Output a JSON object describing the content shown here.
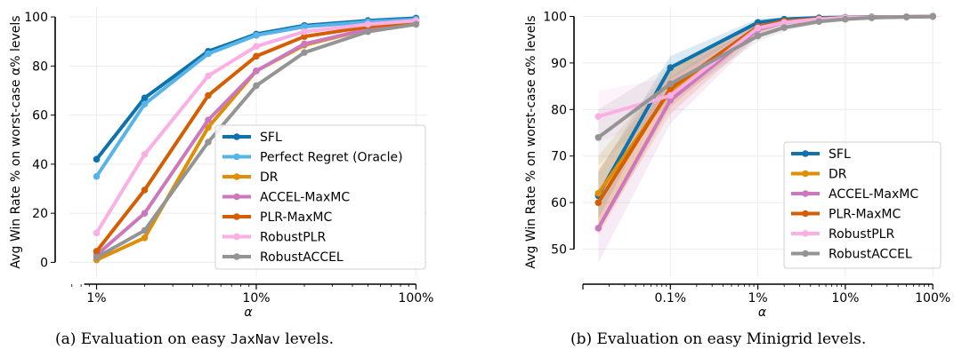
{
  "chart_data": [
    {
      "type": "line",
      "x": [
        1,
        2,
        5,
        10,
        20,
        50,
        100
      ],
      "xscale": "log",
      "xlim_log10": [
        -0.17,
        2.07
      ],
      "ylim": [
        -6,
        104
      ],
      "xticks": [
        {
          "v": 1,
          "label": "1%"
        },
        {
          "v": 10,
          "label": "10%"
        },
        {
          "v": 100,
          "label": "100%"
        }
      ],
      "yticks": [
        0,
        20,
        40,
        60,
        80,
        100
      ],
      "xlabel": "α",
      "ylabel": "Avg Win Rate % on worst-case α% levels",
      "grid": true,
      "legend_position": "lower-right",
      "series": [
        {
          "name": "SFL",
          "color": "#0e72ad",
          "values": [
            42,
            67,
            86,
            93,
            96.5,
            98.5,
            99.5
          ]
        },
        {
          "name": "Perfect Regret (Oracle)",
          "color": "#56b4e9",
          "values": [
            35,
            64.5,
            85,
            92.5,
            96,
            98,
            99
          ]
        },
        {
          "name": "DR",
          "color": "#de8f05",
          "values": [
            1,
            10,
            55,
            78,
            88.5,
            95,
            97.5
          ]
        },
        {
          "name": "ACCEL-MaxMC",
          "color": "#cc78bc",
          "values": [
            3,
            20,
            58,
            78,
            89,
            95,
            98
          ]
        },
        {
          "name": "PLR-MaxMC",
          "color": "#d55e00",
          "values": [
            4.5,
            29.5,
            68,
            84,
            92,
            96,
            98
          ]
        },
        {
          "name": "RobustPLR",
          "color": "#fbafe4",
          "values": [
            12,
            44,
            76,
            88,
            94,
            97,
            98.5
          ]
        },
        {
          "name": "RobustACCEL",
          "color": "#949494",
          "values": [
            2,
            13,
            49,
            72,
            85.5,
            94,
            97
          ]
        }
      ]
    },
    {
      "type": "line",
      "x": [
        0.015,
        0.1,
        1,
        2,
        5,
        10,
        20,
        50,
        100
      ],
      "xscale": "log",
      "xlim_log10": [
        -2.0,
        2.1
      ],
      "ylim": [
        44,
        102
      ],
      "xticks": [
        {
          "v": 0.1,
          "label": "0.1%"
        },
        {
          "v": 1,
          "label": "1%"
        },
        {
          "v": 10,
          "label": "10%"
        },
        {
          "v": 100,
          "label": "100%"
        }
      ],
      "yticks": [
        50,
        60,
        70,
        80,
        90,
        100
      ],
      "xlabel": "α",
      "ylabel": "Avg Win Rate % on worst-case α% levels",
      "grid": true,
      "legend_position": "lower-right",
      "series": [
        {
          "name": "SFL",
          "color": "#0e72ad",
          "values": [
            61.5,
            89,
            98.7,
            99.4,
            99.7,
            99.8,
            99.9,
            99.9,
            100
          ],
          "band": [
            5,
            2.5,
            0.8,
            0.4,
            0.3,
            0.2,
            0.1,
            0.1,
            0.1
          ]
        },
        {
          "name": "DR",
          "color": "#de8f05",
          "values": [
            62,
            84,
            97.5,
            98.8,
            99.5,
            99.7,
            99.8,
            99.9,
            100
          ],
          "band": [
            8,
            5,
            1.5,
            0.8,
            0.5,
            0.3,
            0.2,
            0.1,
            0.1
          ]
        },
        {
          "name": "ACCEL-MaxMC",
          "color": "#cc78bc",
          "values": [
            54.5,
            82,
            97.2,
            98.7,
            99.4,
            99.7,
            99.8,
            99.9,
            100
          ],
          "band": [
            7.5,
            5,
            1.5,
            0.8,
            0.5,
            0.3,
            0.2,
            0.1,
            0.1
          ]
        },
        {
          "name": "PLR-MaxMC",
          "color": "#d55e00",
          "values": [
            60,
            84.5,
            97.8,
            99,
            99.5,
            99.7,
            99.8,
            99.9,
            100
          ],
          "band": [
            7,
            4,
            1.2,
            0.6,
            0.4,
            0.3,
            0.2,
            0.1,
            0.1
          ]
        },
        {
          "name": "RobustPLR",
          "color": "#fbafe4",
          "values": [
            78.5,
            83,
            97.5,
            98.7,
            99.4,
            99.7,
            99.8,
            99.9,
            100
          ],
          "band": [
            5.5,
            4,
            1.5,
            0.8,
            0.5,
            0.3,
            0.2,
            0.1,
            0.1
          ]
        },
        {
          "name": "RobustACCEL",
          "color": "#949494",
          "values": [
            74,
            85.5,
            95.8,
            97.6,
            98.9,
            99.4,
            99.7,
            99.9,
            100
          ],
          "band": [
            6,
            4,
            1.2,
            0.8,
            0.5,
            0.3,
            0.2,
            0.1,
            0.1
          ]
        }
      ]
    }
  ],
  "captions": {
    "left_prefix": "(a) Evaluation on easy ",
    "left_code": "JaxNav",
    "left_suffix": " levels.",
    "right": "(b) Evaluation on easy Minigrid levels."
  }
}
